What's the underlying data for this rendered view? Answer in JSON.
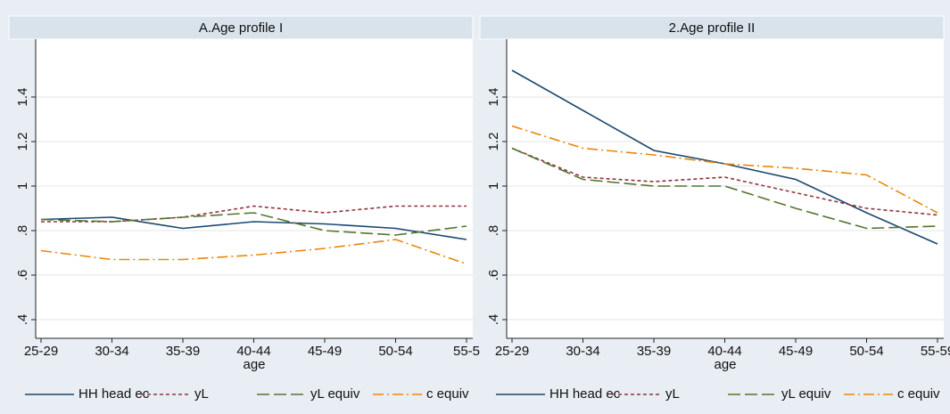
{
  "chart_data": [
    {
      "type": "line",
      "title": "A.Age profile I",
      "x_label": "age",
      "categories": [
        "25-29",
        "30-34",
        "35-39",
        "40-44",
        "45-49",
        "50-54",
        "55-5"
      ],
      "ylim": [
        0.316,
        1.66
      ],
      "yticks": [
        {
          "value": 0.4,
          "label": ".4"
        },
        {
          "value": 0.6,
          "label": ".6"
        },
        {
          "value": 0.8,
          "label": ".8"
        },
        1,
        {
          "value": 1.2,
          "label": "1.2"
        },
        {
          "value": 1.4,
          "label": "1.4"
        }
      ],
      "grid": true,
      "legend": "bottom",
      "series": [
        {
          "name": "HH head ec",
          "color": "#1a476f",
          "dash": "solid",
          "values": [
            0.85,
            0.86,
            0.81,
            0.84,
            0.83,
            0.81,
            0.76
          ]
        },
        {
          "name": "yL",
          "color": "#90353b",
          "dash": "short",
          "values": [
            0.84,
            0.84,
            0.86,
            0.91,
            0.88,
            0.91,
            0.91
          ]
        },
        {
          "name": "yL equiv",
          "color": "#55752f",
          "dash": "long",
          "values": [
            0.85,
            0.84,
            0.86,
            0.88,
            0.8,
            0.78,
            0.82
          ]
        },
        {
          "name": "c equiv",
          "color": "#e8870c",
          "dash": "dashdot",
          "values": [
            0.71,
            0.67,
            0.67,
            0.69,
            0.72,
            0.76,
            0.65
          ]
        }
      ]
    },
    {
      "type": "line",
      "title": "2.Age profile II",
      "x_label": "age",
      "categories": [
        "25-29",
        "30-34",
        "35-39",
        "40-44",
        "45-49",
        "50-54",
        "55-59"
      ],
      "ylim": [
        0.316,
        1.66
      ],
      "yticks": [
        {
          "value": 0.4,
          "label": ".4"
        },
        {
          "value": 0.6,
          "label": ".6"
        },
        {
          "value": 0.8,
          "label": ".8"
        },
        1,
        {
          "value": 1.2,
          "label": "1.2"
        },
        {
          "value": 1.4,
          "label": "1.4"
        }
      ],
      "grid": true,
      "legend": "bottom",
      "series": [
        {
          "name": "HH head ec",
          "color": "#1a476f",
          "dash": "solid",
          "values": [
            1.52,
            1.34,
            1.16,
            1.1,
            1.03,
            0.88,
            0.74
          ]
        },
        {
          "name": "yL",
          "color": "#90353b",
          "dash": "short",
          "values": [
            1.17,
            1.04,
            1.02,
            1.04,
            0.97,
            0.9,
            0.87
          ]
        },
        {
          "name": "yL equiv",
          "color": "#55752f",
          "dash": "long",
          "values": [
            1.17,
            1.03,
            1.0,
            1.0,
            0.9,
            0.81,
            0.82
          ]
        },
        {
          "name": "c equiv",
          "color": "#e8870c",
          "dash": "dashdot",
          "values": [
            1.27,
            1.17,
            1.14,
            1.1,
            1.08,
            1.05,
            0.88
          ]
        }
      ]
    }
  ]
}
